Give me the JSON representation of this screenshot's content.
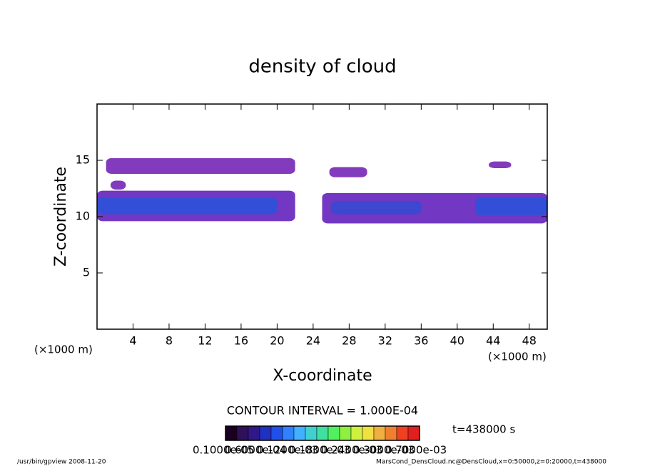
{
  "chart_data": {
    "type": "contour",
    "title": "density of cloud",
    "x_label": "X-coordinate",
    "y_label": "Z-coordinate",
    "x_unit_left": "(×1000 m)",
    "x_unit_right": "(×1000 m)",
    "xlim": [
      0,
      50
    ],
    "xticks": [
      4,
      8,
      12,
      16,
      20,
      24,
      28,
      32,
      36,
      40,
      44,
      48
    ],
    "ylim": [
      0,
      20
    ],
    "yticks": [
      5,
      10,
      15
    ],
    "contour_interval": "CONTOUR INTERVAL = 1.000E-04",
    "time": "t=438000 s",
    "patches": [
      {
        "x": [
          1,
          22
        ],
        "z": [
          13.8,
          15.2
        ],
        "value": 2e-05,
        "color": "#7a30b8"
      },
      {
        "x": [
          1.5,
          3.2
        ],
        "z": [
          12.4,
          13.2
        ],
        "value": 2e-05,
        "color": "#7a30b8"
      },
      {
        "x": [
          25.8,
          30
        ],
        "z": [
          13.5,
          14.4
        ],
        "value": 2e-05,
        "color": "#7a30b8"
      },
      {
        "x": [
          43.5,
          46
        ],
        "z": [
          14.3,
          14.9
        ],
        "value": 2e-05,
        "color": "#7a30b8"
      },
      {
        "x": [
          0,
          22
        ],
        "z": [
          9.6,
          12.3
        ],
        "value": 3e-05,
        "color": "#6a2cc0"
      },
      {
        "x": [
          25,
          50
        ],
        "z": [
          9.4,
          12.1
        ],
        "value": 3e-05,
        "color": "#6a2cc0"
      },
      {
        "x": [
          0,
          20
        ],
        "z": [
          10.2,
          11.7
        ],
        "value": 8e-05,
        "color": "#3050d8"
      },
      {
        "x": [
          26,
          36
        ],
        "z": [
          10.2,
          11.4
        ],
        "value": 7e-05,
        "color": "#3a48d0"
      },
      {
        "x": [
          42,
          50
        ],
        "z": [
          10.1,
          11.7
        ],
        "value": 8e-05,
        "color": "#3050d8"
      }
    ],
    "colorbar": {
      "colors": [
        "#1a0020",
        "#30105a",
        "#301888",
        "#2030c0",
        "#2050e8",
        "#3080ff",
        "#40b0ff",
        "#40d0d0",
        "#40e0a0",
        "#50f060",
        "#90f040",
        "#d0f040",
        "#f0e040",
        "#f0b040",
        "#f08030",
        "#f04020",
        "#e02020"
      ],
      "labels": [
        "0.1000e-05",
        "0.6000e-04",
        "0.1200e-03",
        "0.1800e-03",
        "0.2400e-03",
        "0.3000e-03",
        "0.7000e-03"
      ]
    },
    "footer_left": "/usr/bin/gpview   2008-11-20",
    "footer_right": "MarsCond_DensCloud.nc@DensCloud,x=0:50000,z=0:20000,t=438000"
  }
}
